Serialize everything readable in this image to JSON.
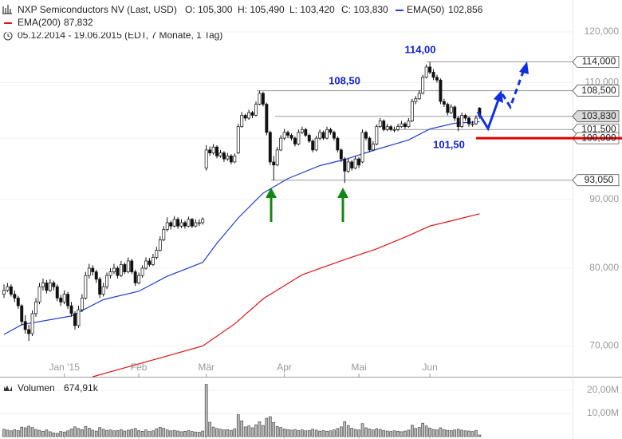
{
  "chart_data": {
    "type": "candlestick",
    "instrument": "NXP Semiconductors NV (Last, USD)",
    "quote": [
      "O: 105,300",
      "H: 105,490",
      "L: 103,420",
      "C: 103,830"
    ],
    "period": "05.12.2014 - 19.06.2015 (EDT, 7 Monate, 1 Tag)",
    "log_scale": true,
    "grid": true,
    "up_color": "#ffffff",
    "down_color": "#111111",
    "xlim": [
      -1.12,
      160.2
    ],
    "xticks": [
      {
        "value": 17,
        "label": "Jan '15"
      },
      {
        "value": 38,
        "label": "Feb"
      },
      {
        "value": 57,
        "label": "Mär"
      },
      {
        "value": 79,
        "label": "Apr"
      },
      {
        "value": 100,
        "label": "Mai"
      },
      {
        "value": 120,
        "label": "Jun"
      }
    ],
    "ylim": [
      66.4,
      122.5
    ],
    "yticks": [
      {
        "value": 120,
        "label": "120,000"
      },
      {
        "value": 110,
        "label": "110,000"
      },
      {
        "value": 100,
        "label": "100,000"
      },
      {
        "value": 90,
        "label": "90,000"
      },
      {
        "value": 80,
        "label": "80,000"
      },
      {
        "value": 70,
        "label": "70,000"
      }
    ],
    "ohlc": [
      [
        76.5,
        77.8,
        76,
        77
      ],
      [
        77,
        78,
        76.8,
        77.5
      ],
      [
        77.5,
        77.8,
        76.2,
        76.5
      ],
      [
        76.5,
        77,
        75.5,
        76
      ],
      [
        76,
        76.3,
        74.6,
        75
      ],
      [
        75,
        75.2,
        72.5,
        73
      ],
      [
        73,
        73.8,
        71.5,
        72
      ],
      [
        72,
        72.6,
        70.6,
        71.5
      ],
      [
        71.5,
        74.4,
        71.2,
        74
      ],
      [
        74,
        76,
        73.6,
        75.5
      ],
      [
        75.5,
        78,
        75.2,
        77.5
      ],
      [
        77.5,
        78.6,
        77,
        78
      ],
      [
        78,
        78.4,
        76.6,
        77
      ],
      [
        77,
        78.5,
        76.8,
        78
      ],
      [
        78,
        78.3,
        77,
        77.5
      ],
      [
        77.5,
        77.8,
        75.6,
        76
      ],
      [
        76,
        76.4,
        75,
        75.5
      ],
      [
        75.5,
        77,
        75.2,
        76.5
      ],
      [
        76.5,
        76.8,
        74.6,
        75
      ],
      [
        75,
        75.5,
        73.6,
        74
      ],
      [
        74,
        74.3,
        72,
        72.5
      ],
      [
        72.5,
        75,
        72.2,
        74.5
      ],
      [
        74.5,
        76.5,
        74.2,
        76
      ],
      [
        76,
        79.5,
        75.8,
        79
      ],
      [
        79,
        80.6,
        78.6,
        80
      ],
      [
        80,
        80.4,
        79,
        79.5
      ],
      [
        79.5,
        79.8,
        78,
        78.5
      ],
      [
        78.5,
        78.8,
        76,
        76.5
      ],
      [
        76.5,
        78,
        76.2,
        77.5
      ],
      [
        77.5,
        79.4,
        77.2,
        79
      ],
      [
        79,
        80,
        78.6,
        79.5
      ],
      [
        79.5,
        80.6,
        79.2,
        80
      ],
      [
        80,
        80.3,
        78.6,
        79
      ],
      [
        79,
        81,
        78.8,
        80.5
      ],
      [
        80.5,
        80.8,
        79.2,
        79.5
      ],
      [
        79.5,
        81.5,
        79.3,
        81
      ],
      [
        81,
        81.3,
        79.2,
        79.5
      ],
      [
        79.5,
        79.8,
        77.6,
        78
      ],
      [
        78,
        79.4,
        77.8,
        79
      ],
      [
        79,
        80.4,
        78.7,
        80
      ],
      [
        80,
        81.5,
        79.8,
        81
      ],
      [
        81,
        81.4,
        80.2,
        80.5
      ],
      [
        80.5,
        82,
        80.3,
        81.5
      ],
      [
        81.5,
        83,
        81.2,
        82.5
      ],
      [
        82.5,
        84.5,
        82.3,
        84
      ],
      [
        84,
        86,
        83.8,
        85.5
      ],
      [
        85.5,
        87.3,
        85.2,
        86.5
      ],
      [
        86.5,
        86.8,
        85.5,
        86
      ],
      [
        86,
        87.5,
        85.8,
        87
      ],
      [
        87,
        87.3,
        85.6,
        86
      ],
      [
        86,
        87,
        85.7,
        86.5
      ],
      [
        86.5,
        86.8,
        85.6,
        86
      ],
      [
        86,
        87.4,
        85.8,
        87
      ],
      [
        87,
        87.2,
        85.7,
        86
      ],
      [
        86,
        87,
        85.8,
        86.5
      ],
      [
        86.5,
        87,
        86,
        86.5
      ],
      [
        86.5,
        87.3,
        86.2,
        87
      ],
      [
        95,
        98.8,
        94.6,
        98
      ],
      [
        98,
        98.6,
        97,
        97.5
      ],
      [
        97.5,
        99,
        97.2,
        98.5
      ],
      [
        98.5,
        98.8,
        96.6,
        97
      ],
      [
        97,
        98,
        96.7,
        97.5
      ],
      [
        97.5,
        97.8,
        96,
        96.5
      ],
      [
        96.5,
        97.5,
        96.2,
        97
      ],
      [
        97,
        97.3,
        95.6,
        96
      ],
      [
        96,
        97.4,
        95.8,
        97
      ],
      [
        97.5,
        102.5,
        97.3,
        102
      ],
      [
        102,
        104.6,
        101.8,
        104
      ],
      [
        104,
        104.3,
        103,
        103.5
      ],
      [
        103.5,
        105,
        103.2,
        104.5
      ],
      [
        104.5,
        104.8,
        103.5,
        104
      ],
      [
        104,
        106.5,
        103.8,
        106
      ],
      [
        106,
        108.5,
        105.8,
        108
      ],
      [
        108,
        108.3,
        105.6,
        106
      ],
      [
        106,
        106.3,
        100.5,
        101
      ],
      [
        101,
        101.3,
        95.5,
        96
      ],
      [
        96,
        97,
        93,
        95.5
      ],
      [
        95.5,
        98.5,
        95.3,
        98
      ],
      [
        98,
        100.5,
        97.8,
        100
      ],
      [
        100,
        101.6,
        99.7,
        101
      ],
      [
        101,
        101.3,
        100,
        100.5
      ],
      [
        100.5,
        100.8,
        99.6,
        100
      ],
      [
        100,
        100.3,
        98.6,
        99
      ],
      [
        99,
        101.5,
        98.8,
        101
      ],
      [
        101,
        102,
        100.7,
        101.5
      ],
      [
        101.5,
        101.8,
        100.2,
        100.5
      ],
      [
        100.5,
        100.8,
        99.2,
        99.5
      ],
      [
        99.5,
        99.8,
        97.6,
        98
      ],
      [
        98,
        100.4,
        97.8,
        100
      ],
      [
        100,
        101.5,
        99.7,
        101
      ],
      [
        101,
        101.3,
        99.7,
        100
      ],
      [
        100,
        102,
        99.8,
        101.5
      ],
      [
        101.5,
        101.8,
        100.6,
        101
      ],
      [
        101,
        101.3,
        99.6,
        100
      ],
      [
        100,
        100.3,
        97.6,
        98
      ],
      [
        98,
        98.3,
        96,
        96.5
      ],
      [
        96.5,
        96.8,
        92.6,
        94.5
      ],
      [
        94.5,
        96.5,
        94.2,
        96
      ],
      [
        96,
        96.3,
        94.6,
        95
      ],
      [
        95,
        97,
        94.8,
        96.5
      ],
      [
        96.5,
        96.8,
        95,
        95.5
      ],
      [
        96,
        101.5,
        95.8,
        101
      ],
      [
        101,
        101.3,
        99.6,
        100
      ],
      [
        100,
        100.3,
        97.6,
        98
      ],
      [
        98,
        99.5,
        97.8,
        99
      ],
      [
        99,
        102.4,
        98.8,
        102
      ],
      [
        102,
        103.5,
        101.8,
        103
      ],
      [
        103,
        103.3,
        101.2,
        101.5
      ],
      [
        101.5,
        102.5,
        101.2,
        102
      ],
      [
        102,
        102.3,
        101.2,
        101.5
      ],
      [
        101.5,
        102,
        101,
        101.5
      ],
      [
        101.5,
        102.5,
        101.2,
        102
      ],
      [
        102,
        103,
        101.8,
        102.5
      ],
      [
        102.5,
        102.8,
        101.6,
        102
      ],
      [
        102,
        103.5,
        101.8,
        103
      ],
      [
        103,
        107,
        102.8,
        106.5
      ],
      [
        106.5,
        107.5,
        106,
        107
      ],
      [
        107,
        108.6,
        106.8,
        108
      ],
      [
        108,
        111.5,
        107.8,
        111
      ],
      [
        111,
        113.5,
        110.8,
        113
      ],
      [
        113,
        114,
        111.6,
        112
      ],
      [
        112,
        112.6,
        110.5,
        111
      ],
      [
        111,
        111.5,
        110,
        110.5
      ],
      [
        110.5,
        110.8,
        106,
        106.5
      ],
      [
        106.5,
        107,
        105.5,
        106
      ],
      [
        106,
        106.3,
        104,
        104.5
      ],
      [
        104.5,
        106,
        104.2,
        105.5
      ],
      [
        105.5,
        105.8,
        103,
        103.5
      ],
      [
        103.5,
        103.8,
        101.2,
        102
      ],
      [
        102,
        104.5,
        101.8,
        104
      ],
      [
        104,
        104.3,
        103,
        103.5
      ],
      [
        103.5,
        103.8,
        102,
        102.5
      ],
      [
        102.5,
        103,
        102,
        102.5
      ],
      [
        102.5,
        104,
        102.3,
        103.5
      ],
      [
        105.3,
        105.49,
        103.42,
        103.83
      ]
    ],
    "series": [
      {
        "name": "EMA(50)",
        "color": "#1f3fd0",
        "last_label": "102,856",
        "x": [
          0,
          5,
          19,
          28,
          38,
          46,
          56,
          60,
          66,
          73,
          80,
          89,
          96,
          105,
          114,
          120,
          127,
          134
        ],
        "values": [
          71.4,
          72.6,
          73.7,
          75.8,
          76.9,
          78.9,
          80.8,
          83.5,
          87.2,
          91,
          93.3,
          95.4,
          96.4,
          98.1,
          99.7,
          101.6,
          102.6,
          102.856
        ]
      },
      {
        "name": "EMA(200)",
        "color": "#e01010",
        "last_label": "87,832",
        "x": [
          25,
          45,
          56,
          65,
          73,
          84,
          96,
          105,
          114,
          120,
          127,
          134
        ],
        "values": [
          66.4,
          68.7,
          70,
          72.7,
          75.9,
          79.1,
          81.2,
          82.7,
          84.6,
          86,
          86.9,
          87.832
        ]
      }
    ],
    "levels": [
      {
        "value": 114,
        "label": "114,000",
        "color": "#999999",
        "fill": "#ffffff"
      },
      {
        "value": 108.5,
        "label": "108,500",
        "color": "#999999",
        "fill": "#ffffff"
      },
      {
        "value": 103.83,
        "label": "103,830",
        "color": "#999999",
        "fill": "#d9d9d9"
      },
      {
        "value": 101.5,
        "label": "101,500",
        "color": "#999999",
        "fill": "#ffffff"
      },
      {
        "value": 100,
        "label": "100,000",
        "color": "#e00000",
        "fill": "#ffffff"
      },
      {
        "value": 93.05,
        "label": "93,050",
        "color": "#999999",
        "fill": "#ffffff"
      }
    ],
    "annotations": [
      {
        "text": "114,00"
      },
      {
        "text": "108,50"
      },
      {
        "text": "101,50"
      }
    ],
    "volume": {
      "name": "Volumen",
      "last_label": "674,91k",
      "color": "#bbbbbb",
      "ylim": [
        0,
        24.8
      ],
      "yticks": [
        {
          "value": 20,
          "label": "20,00M"
        },
        {
          "value": 10,
          "label": "10,00M"
        }
      ],
      "values": [
        3.2,
        2.8,
        2.5,
        3.0,
        2.6,
        4.1,
        3.8,
        4.5,
        3.9,
        3.1,
        2.7,
        2.3,
        2.9,
        2.1,
        1.6,
        1.4,
        2.2,
        2.0,
        2.5,
        3.3,
        4.2,
        3.5,
        3.0,
        4.4,
        3.6,
        2.8,
        2.4,
        3.9,
        3.2,
        2.7,
        2.9,
        2.5,
        2.6,
        3.0,
        2.4,
        2.8,
        3.1,
        3.5,
        2.6,
        2.3,
        2.9,
        2.2,
        2.5,
        3.4,
        4.0,
        3.6,
        2.9,
        2.5,
        2.7,
        2.4,
        2.1,
        2.3,
        2.6,
        2.2,
        2.0,
        1.9,
        2.4,
        22.5,
        6.2,
        4.1,
        3.5,
        3.2,
        2.9,
        3.0,
        2.7,
        3.4,
        9.5,
        6.8,
        4.2,
        4.6,
        3.8,
        5.1,
        6.4,
        4.8,
        7.9,
        8.6,
        6.1,
        4.4,
        3.9,
        3.3,
        3.0,
        2.8,
        3.1,
        2.6,
        2.9,
        2.5,
        2.7,
        3.2,
        2.8,
        2.4,
        2.6,
        2.3,
        2.5,
        2.9,
        3.5,
        4.2,
        6.5,
        4.8,
        3.6,
        3.1,
        2.9,
        5.6,
        3.8,
        3.3,
        2.9,
        3.4,
        3.1,
        2.6,
        2.4,
        2.2,
        2.5,
        2.3,
        2.1,
        2.4,
        2.8,
        4.9,
        3.5,
        3.9,
        5.8,
        4.6,
        3.7,
        3.1,
        2.9,
        3.8,
        3.0,
        2.7,
        2.6,
        2.9,
        3.2,
        2.8,
        2.5,
        2.4,
        2.2,
        2.7,
        0.67491
      ]
    }
  }
}
